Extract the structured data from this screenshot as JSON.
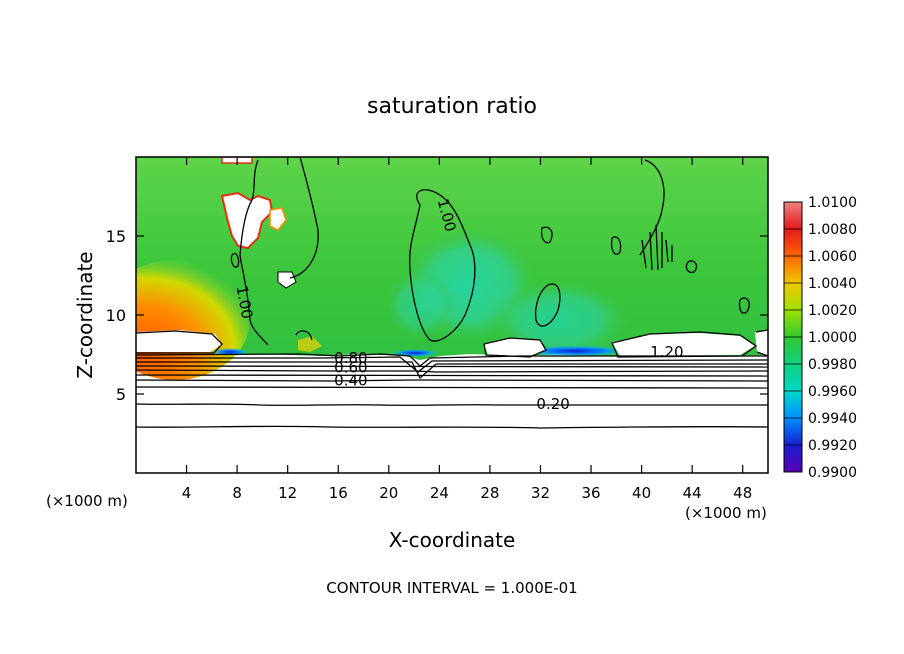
{
  "chart_data": {
    "type": "heatmap",
    "title": "saturation ratio",
    "xlabel": "X-coordinate",
    "ylabel": "Z-coordinate",
    "x_unit_left": "(×1000 m)",
    "x_unit_right": "(×1000 m)",
    "xlim": [
      0,
      50
    ],
    "ylim": [
      0,
      20
    ],
    "x_ticks": [
      4,
      8,
      12,
      16,
      20,
      24,
      28,
      32,
      36,
      40,
      44,
      48
    ],
    "y_ticks": [
      5,
      10,
      15
    ],
    "footer": "CONTOUR INTERVAL = 1.000E-01",
    "colorbar": {
      "levels": [
        "1.0100",
        "1.0080",
        "1.0060",
        "1.0040",
        "1.0020",
        "1.0000",
        "0.9980",
        "0.9960",
        "0.9940",
        "0.9920",
        "0.9900"
      ],
      "colors": [
        "#f08080",
        "#e31a1c",
        "#ff6600",
        "#f0c800",
        "#a0e000",
        "#32c832",
        "#10d080",
        "#00d8c8",
        "#0090ff",
        "#1820d0",
        "#5a00b0"
      ]
    },
    "contour_labels": [
      {
        "text": "1.00",
        "x": 24.5,
        "z": 16.3
      },
      {
        "text": "1.00",
        "x": 8.5,
        "z": 10.8
      },
      {
        "text": "1.20",
        "x": 42.0,
        "z": 7.6
      },
      {
        "text": "0.80",
        "x": 17.0,
        "z": 7.2
      },
      {
        "text": "0.60",
        "x": 17.0,
        "z": 6.6
      },
      {
        "text": "0.40",
        "x": 17.0,
        "z": 5.8
      },
      {
        "text": "0.20",
        "x": 33.0,
        "z": 4.3
      }
    ],
    "fill_regions": [
      {
        "x": [
          0,
          5.5
        ],
        "z": [
          8.9,
          12.5
        ],
        "value": 1.006
      },
      {
        "x": [
          0,
          50
        ],
        "z": [
          7.5,
          20
        ],
        "value": 1.0
      }
    ]
  }
}
